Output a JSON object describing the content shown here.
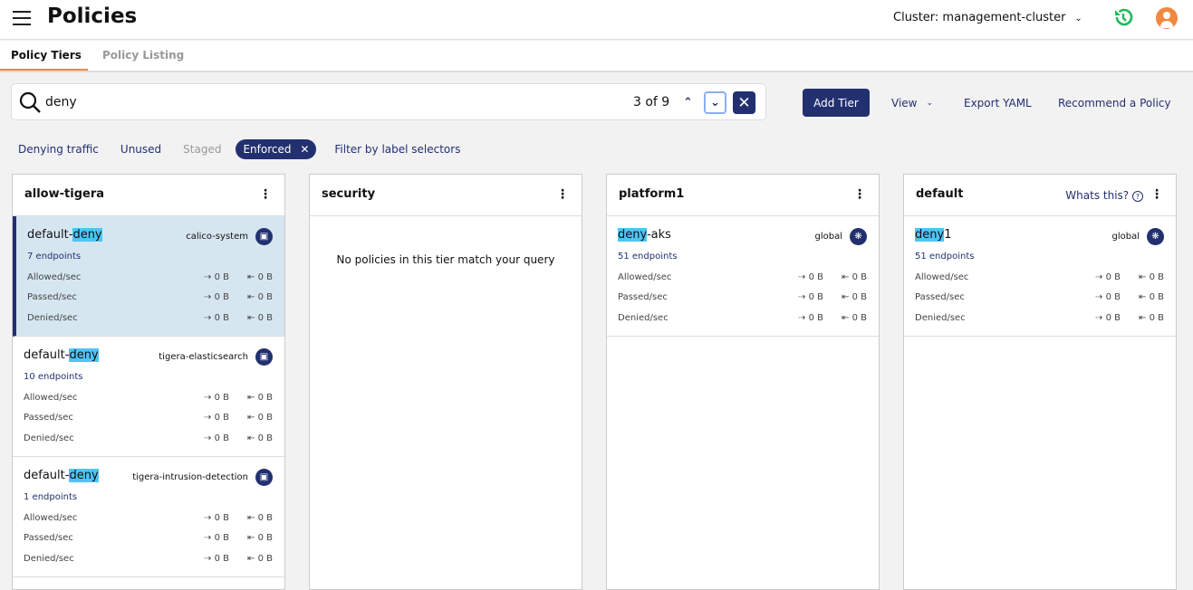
{
  "header": {
    "title": "Policies",
    "cluster": "Cluster: management-cluster",
    "history_icon": "history-icon",
    "user_icon": "user-icon"
  },
  "tabs": [
    {
      "label": "Policy Tiers",
      "active": true
    },
    {
      "label": "Policy Listing",
      "active": false
    }
  ],
  "search": {
    "value": "deny",
    "match_count": "3 of 9"
  },
  "toolbar": {
    "add_tier": "Add Tier",
    "view": "View",
    "export": "Export YAML",
    "recommend": "Recommend a Policy"
  },
  "filters": {
    "denying": "Denying traffic",
    "unused": "Unused",
    "staged": "Staged",
    "enforced": "Enforced",
    "label_selectors": "Filter by label selectors"
  },
  "colors": {
    "accent": "#223070",
    "highlight": "#4fc4f7",
    "tab_underline": "#f0883e"
  },
  "metric_labels": [
    "Allowed/sec",
    "Passed/sec",
    "Denied/sec"
  ],
  "tiers": [
    {
      "name": "allow-tigera",
      "policies": [
        {
          "prefix": "default-",
          "match": "deny",
          "suffix": "",
          "namespace": "calico-system",
          "endpoints": "7 endpoints",
          "selected": true,
          "metrics": [
            [
              "0 B",
              "0 B"
            ],
            [
              "0 B",
              "0 B"
            ],
            [
              "0 B",
              "0 B"
            ]
          ]
        },
        {
          "prefix": "default-",
          "match": "deny",
          "suffix": "",
          "namespace": "tigera-elasticsearch",
          "endpoints": "10 endpoints",
          "selected": false,
          "metrics": [
            [
              "0 B",
              "0 B"
            ],
            [
              "0 B",
              "0 B"
            ],
            [
              "0 B",
              "0 B"
            ]
          ]
        },
        {
          "prefix": "default-",
          "match": "deny",
          "suffix": "",
          "namespace": "tigera-intrusion-detection",
          "endpoints": "1 endpoints",
          "selected": false,
          "metrics": [
            [
              "0 B",
              "0 B"
            ],
            [
              "0 B",
              "0 B"
            ],
            [
              "0 B",
              "0 B"
            ]
          ]
        }
      ]
    },
    {
      "name": "security",
      "empty_message": "No policies in this tier match your query",
      "policies": []
    },
    {
      "name": "platform1",
      "policies": [
        {
          "prefix": "",
          "match": "deny",
          "suffix": "-aks",
          "namespace": "global",
          "endpoints": "51 endpoints",
          "selected": false,
          "metrics": [
            [
              "0 B",
              "0 B"
            ],
            [
              "0 B",
              "0 B"
            ],
            [
              "0 B",
              "0 B"
            ]
          ]
        }
      ]
    },
    {
      "name": "default",
      "whats_this": "Whats this?",
      "policies": [
        {
          "prefix": "",
          "match": "deny",
          "suffix": "1",
          "namespace": "global",
          "endpoints": "51 endpoints",
          "selected": false,
          "metrics": [
            [
              "0 B",
              "0 B"
            ],
            [
              "0 B",
              "0 B"
            ],
            [
              "0 B",
              "0 B"
            ]
          ]
        }
      ]
    }
  ]
}
